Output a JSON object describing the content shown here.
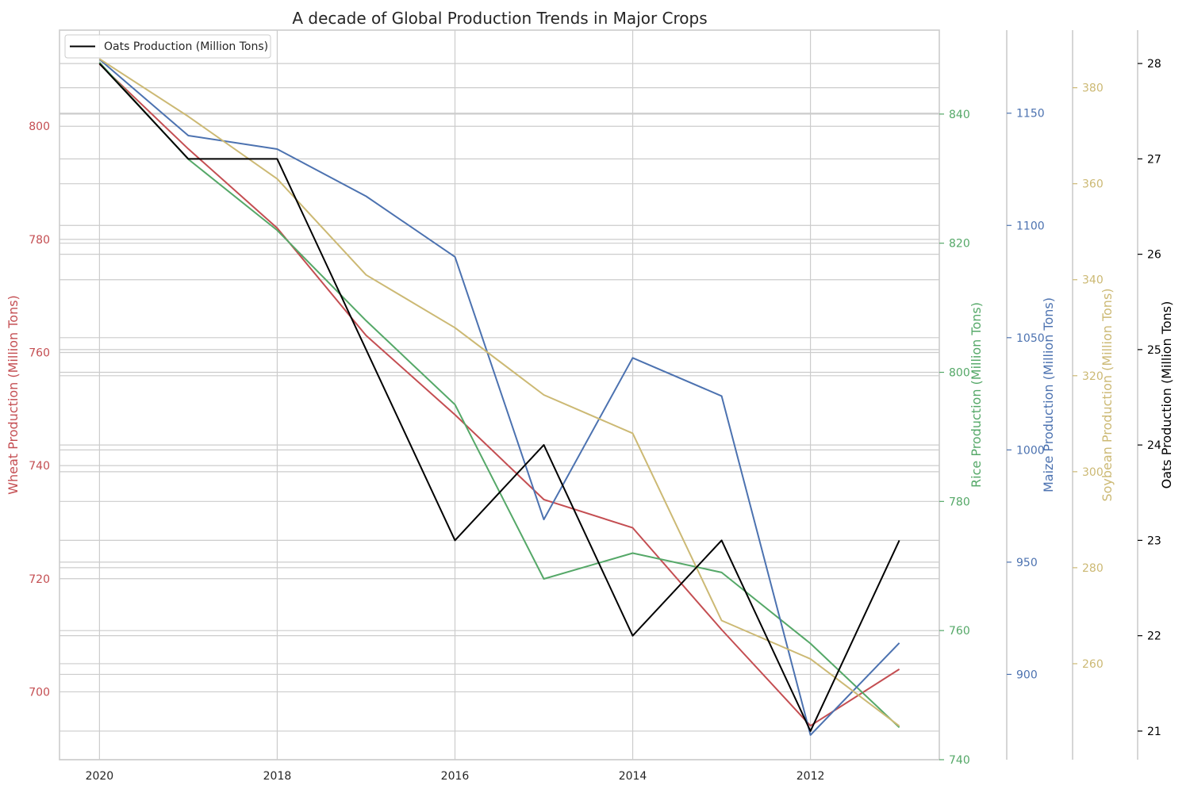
{
  "chart_data": {
    "type": "line",
    "title": "A decade of Global Production Trends in Major Crops",
    "x": [
      2020,
      2019,
      2018,
      2017,
      2016,
      2015,
      2014,
      2013,
      2012,
      2011
    ],
    "xticks": [
      2020,
      2018,
      2016,
      2014,
      2012
    ],
    "xlim": [
      2020.45,
      2010.55
    ],
    "grid": true,
    "legend": {
      "placement": "top-left",
      "entries": [
        "Oats Production (Million Tons)"
      ]
    },
    "series": [
      {
        "name": "Wheat Production (Million Tons)",
        "color": "#c44e52",
        "axis": "left",
        "values": [
          811,
          796,
          782,
          763,
          749,
          734,
          729,
          711,
          694,
          704
        ],
        "ylim": [
          688,
          817
        ],
        "yticks": [
          700,
          720,
          740,
          760,
          780,
          800
        ]
      },
      {
        "name": "Rice Production (Million Tons)",
        "color": "#55a868",
        "axis": "right-1",
        "values": [
          848,
          833,
          822,
          808,
          795,
          768,
          772,
          769,
          758,
          745
        ],
        "ylim": [
          740,
          853
        ],
        "yticks": [
          740,
          760,
          780,
          800,
          820,
          840
        ]
      },
      {
        "name": "Maize Production (Million Tons)",
        "color": "#4c72b0",
        "axis": "right-2",
        "values": [
          1174,
          1140,
          1134,
          1113,
          1086,
          969,
          1041,
          1024,
          873,
          914
        ],
        "ylim": [
          862,
          1187
        ],
        "yticks": [
          900,
          950,
          1000,
          1050,
          1100,
          1150
        ]
      },
      {
        "name": "Soybean Production (Million Tons)",
        "color": "#ccb974",
        "axis": "right-3",
        "values": [
          386,
          374,
          361,
          341,
          330,
          316,
          308,
          269,
          261,
          247
        ],
        "ylim": [
          240,
          392
        ],
        "yticks": [
          260,
          280,
          300,
          320,
          340,
          360,
          380
        ]
      },
      {
        "name": "Oats Production (Million Tons)",
        "color": "#000000",
        "axis": "right-4",
        "values": [
          28,
          27,
          27,
          25,
          23,
          24,
          22,
          23,
          21,
          23
        ],
        "ylim": [
          20.7,
          28.35
        ],
        "yticks": [
          21,
          22,
          23,
          24,
          25,
          26,
          27,
          28
        ]
      }
    ]
  }
}
